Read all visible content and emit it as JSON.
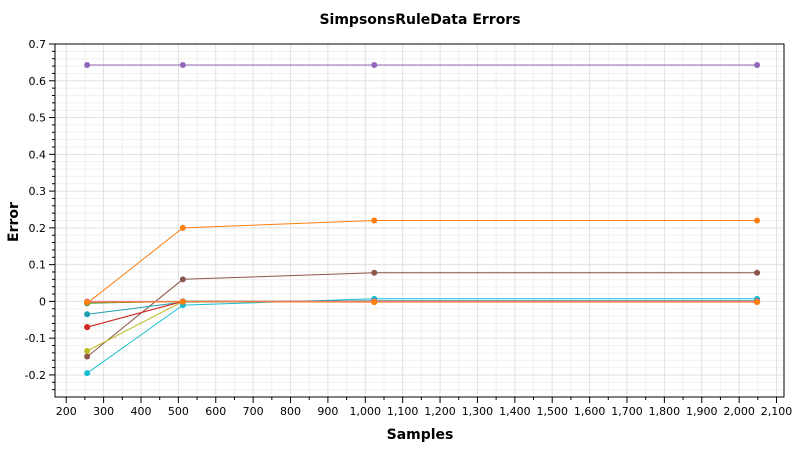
{
  "chart_data": {
    "type": "line",
    "title": "SimpsonsRuleData Errors",
    "xlabel": "Samples",
    "ylabel": "Error",
    "xlim": [
      170,
      2120
    ],
    "ylim": [
      -0.26,
      0.7
    ],
    "x_ticks": [
      200,
      300,
      400,
      500,
      600,
      700,
      800,
      900,
      1000,
      1100,
      1200,
      1300,
      1400,
      1500,
      1600,
      1700,
      1800,
      1900,
      2000,
      2100
    ],
    "x_tick_labels": [
      "200",
      "300",
      "400",
      "500",
      "600",
      "700",
      "800",
      "900",
      "1,000",
      "1,100",
      "1,200",
      "1,300",
      "1,400",
      "1,500",
      "1,600",
      "1,700",
      "1,800",
      "1,900",
      "2,000",
      "2,100"
    ],
    "y_ticks": [
      -0.2,
      -0.1,
      0,
      0.1,
      0.2,
      0.3,
      0.4,
      0.5,
      0.6,
      0.7
    ],
    "y_tick_labels": [
      "-0.2",
      "-0.1",
      "0",
      "0.1",
      "0.2",
      "0.3",
      "0.4",
      "0.5",
      "0.6",
      "0.7"
    ],
    "grid": true,
    "legend": "none",
    "x": [
      256,
      512,
      1024,
      2048
    ],
    "series": [
      {
        "color": "#9467bd",
        "values": [
          0.643,
          0.643,
          0.643,
          0.643
        ]
      },
      {
        "color": "#ff7f0e",
        "values": [
          -0.005,
          0.2,
          0.22,
          0.22
        ]
      },
      {
        "color": "#8c564b",
        "values": [
          -0.15,
          0.06,
          0.078,
          0.078
        ]
      },
      {
        "color": "#17becf",
        "values": [
          -0.195,
          -0.01,
          0.007,
          0.007
        ]
      },
      {
        "color": "#1f9fb0",
        "values": [
          -0.035,
          -0.002,
          0.002,
          0.002
        ]
      },
      {
        "color": "#bcbd22",
        "values": [
          -0.135,
          0.0,
          0.0,
          0.0
        ]
      },
      {
        "color": "#9a3c1e",
        "values": [
          -0.07,
          0.0,
          0.0,
          0.0
        ]
      },
      {
        "color": "#d62728",
        "values": [
          -0.07,
          0.0,
          0.0,
          0.0
        ]
      },
      {
        "color": "#2ca02c",
        "values": [
          -0.005,
          0.0,
          0.0,
          0.0
        ]
      },
      {
        "color": "#7f7f7f",
        "values": [
          -0.003,
          0.0,
          -0.001,
          -0.001
        ]
      },
      {
        "color": "#e377c2",
        "values": [
          0.0,
          0.0,
          0.0,
          0.0
        ]
      },
      {
        "color": "#ff7f0e",
        "values": [
          -0.002,
          -0.001,
          -0.002,
          -0.002
        ]
      }
    ]
  }
}
